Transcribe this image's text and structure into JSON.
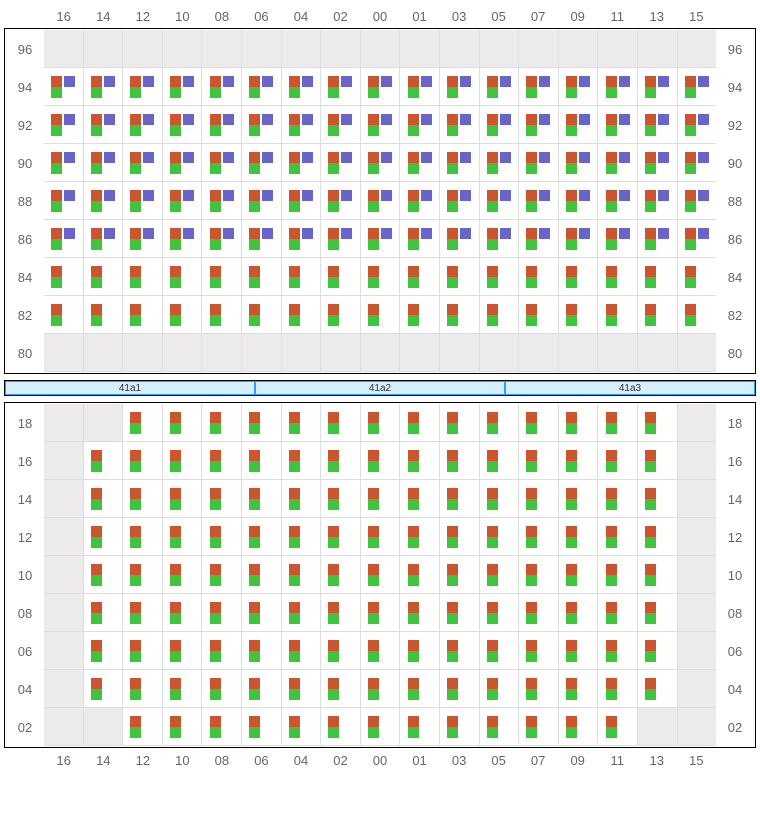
{
  "columns": [
    "16",
    "14",
    "12",
    "10",
    "08",
    "06",
    "04",
    "02",
    "00",
    "01",
    "03",
    "05",
    "07",
    "09",
    "11",
    "13",
    "15"
  ],
  "colors": {
    "orange": "#c9562e",
    "green": "#3fc43f",
    "purple": "#6864c8",
    "empty_bg": "#eceaea",
    "filled_bg": "#ffffff",
    "border": "#dddddd",
    "section_bg": "#d5efff",
    "section_border": "#2aa0ff"
  },
  "sections": [
    "41a1",
    "41a2",
    "41a3"
  ],
  "top_block": {
    "rows": [
      {
        "label": "96",
        "cells": [
          "E",
          "E",
          "E",
          "E",
          "E",
          "E",
          "E",
          "E",
          "E",
          "E",
          "E",
          "E",
          "E",
          "E",
          "E",
          "E",
          "E"
        ]
      },
      {
        "label": "94",
        "cells": [
          "OPG",
          "OPG",
          "OPG",
          "OPG",
          "OPG",
          "OPG",
          "OPG",
          "OPG",
          "OPG",
          "OPG",
          "OPG",
          "OPG",
          "OPG",
          "OPG",
          "OPG",
          "OPG",
          "OPG"
        ]
      },
      {
        "label": "92",
        "cells": [
          "OPG",
          "OPG",
          "OPG",
          "OPG",
          "OPG",
          "OPG",
          "OPG",
          "OPG",
          "OPG",
          "OPG",
          "OPG",
          "OPG",
          "OPG",
          "OPG",
          "OPG",
          "OPG",
          "OPG"
        ]
      },
      {
        "label": "90",
        "cells": [
          "OPG",
          "OPG",
          "OPG",
          "OPG",
          "OPG",
          "OPG",
          "OPG",
          "OPG",
          "OPG",
          "OPG",
          "OPG",
          "OPG",
          "OPG",
          "OPG",
          "OPG",
          "OPG",
          "OPG"
        ]
      },
      {
        "label": "88",
        "cells": [
          "OPG",
          "OPG",
          "OPG",
          "OPG",
          "OPG",
          "OPG",
          "OPG",
          "OPG",
          "OPG",
          "OPG",
          "OPG",
          "OPG",
          "OPG",
          "OPG",
          "OPG",
          "OPG",
          "OPG"
        ]
      },
      {
        "label": "86",
        "cells": [
          "OPG",
          "OPG",
          "OPG",
          "OPG",
          "OPG",
          "OPG",
          "OPG",
          "OPG",
          "OPG",
          "OPG",
          "OPG",
          "OPG",
          "OPG",
          "OPG",
          "OPG",
          "OPG",
          "OPG"
        ]
      },
      {
        "label": "84",
        "cells": [
          "OG",
          "OG",
          "OG",
          "OG",
          "OG",
          "OG",
          "OG",
          "OG",
          "OG",
          "OG",
          "OG",
          "OG",
          "OG",
          "OG",
          "OG",
          "OG",
          "OG"
        ]
      },
      {
        "label": "82",
        "cells": [
          "OG",
          "OG",
          "OG",
          "OG",
          "OG",
          "OG",
          "OG",
          "OG",
          "OG",
          "OG",
          "OG",
          "OG",
          "OG",
          "OG",
          "OG",
          "OG",
          "OG"
        ]
      },
      {
        "label": "80",
        "cells": [
          "E",
          "E",
          "E",
          "E",
          "E",
          "E",
          "E",
          "E",
          "E",
          "E",
          "E",
          "E",
          "E",
          "E",
          "E",
          "E",
          "E"
        ]
      }
    ]
  },
  "bottom_block": {
    "rows": [
      {
        "label": "18",
        "cells": [
          "E",
          "E",
          "OG",
          "OG",
          "OG",
          "OG",
          "OG",
          "OG",
          "OG",
          "OG",
          "OG",
          "OG",
          "OG",
          "OG",
          "OG",
          "OG",
          "E"
        ]
      },
      {
        "label": "16",
        "cells": [
          "E",
          "OG",
          "OG",
          "OG",
          "OG",
          "OG",
          "OG",
          "OG",
          "OG",
          "OG",
          "OG",
          "OG",
          "OG",
          "OG",
          "OG",
          "OG",
          "E"
        ]
      },
      {
        "label": "14",
        "cells": [
          "E",
          "OG",
          "OG",
          "OG",
          "OG",
          "OG",
          "OG",
          "OG",
          "OG",
          "OG",
          "OG",
          "OG",
          "OG",
          "OG",
          "OG",
          "OG",
          "E"
        ]
      },
      {
        "label": "12",
        "cells": [
          "E",
          "OG",
          "OG",
          "OG",
          "OG",
          "OG",
          "OG",
          "OG",
          "OG",
          "OG",
          "OG",
          "OG",
          "OG",
          "OG",
          "OG",
          "OG",
          "E"
        ]
      },
      {
        "label": "10",
        "cells": [
          "E",
          "OG",
          "OG",
          "OG",
          "OG",
          "OG",
          "OG",
          "OG",
          "OG",
          "OG",
          "OG",
          "OG",
          "OG",
          "OG",
          "OG",
          "OG",
          "E"
        ]
      },
      {
        "label": "08",
        "cells": [
          "E",
          "OG",
          "OG",
          "OG",
          "OG",
          "OG",
          "OG",
          "OG",
          "OG",
          "OG",
          "OG",
          "OG",
          "OG",
          "OG",
          "OG",
          "OG",
          "E"
        ]
      },
      {
        "label": "06",
        "cells": [
          "E",
          "OG",
          "OG",
          "OG",
          "OG",
          "OG",
          "OG",
          "OG",
          "OG",
          "OG",
          "OG",
          "OG",
          "OG",
          "OG",
          "OG",
          "OG",
          "E"
        ]
      },
      {
        "label": "04",
        "cells": [
          "E",
          "OG",
          "OG",
          "OG",
          "OG",
          "OG",
          "OG",
          "OG",
          "OG",
          "OG",
          "OG",
          "OG",
          "OG",
          "OG",
          "OG",
          "OG",
          "E"
        ]
      },
      {
        "label": "02",
        "cells": [
          "E",
          "E",
          "OG",
          "OG",
          "OG",
          "OG",
          "OG",
          "OG",
          "OG",
          "OG",
          "OG",
          "OG",
          "OG",
          "OG",
          "OG",
          "E",
          "E"
        ]
      }
    ]
  }
}
